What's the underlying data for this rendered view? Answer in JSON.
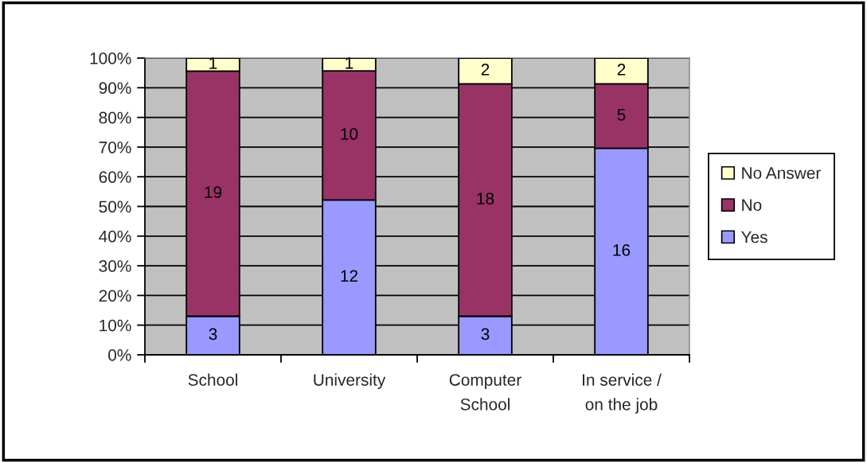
{
  "chart_data": {
    "type": "bar",
    "stacked": true,
    "categories": [
      "School",
      "University",
      "Computer\nSchool",
      "In service /\non the job"
    ],
    "series": [
      {
        "name": "Yes",
        "color": "#9999ff",
        "values": [
          13.0,
          52.2,
          13.0,
          69.6
        ]
      },
      {
        "name": "No",
        "color": "#993366",
        "values": [
          82.6,
          43.5,
          78.3,
          21.7
        ]
      },
      {
        "name": "No Answer",
        "color": "#ffffcc",
        "values": [
          4.4,
          4.3,
          8.7,
          8.7
        ]
      }
    ],
    "annotations": [
      "3",
      "19",
      "1",
      "12",
      "10",
      "1",
      "3",
      "18",
      "2",
      "16",
      "5",
      "2"
    ],
    "ylim": [
      0,
      100
    ],
    "yticks": [
      {
        "value": 0,
        "label": "0%"
      },
      {
        "value": 10,
        "label": "10%"
      },
      {
        "value": 20,
        "label": "20%"
      },
      {
        "value": 30,
        "label": "30%"
      },
      {
        "value": 40,
        "label": "40%"
      },
      {
        "value": 50,
        "label": "50%"
      },
      {
        "value": 60,
        "label": "60%"
      },
      {
        "value": 70,
        "label": "70%"
      },
      {
        "value": 80,
        "label": "80%"
      },
      {
        "value": 90,
        "label": "90%"
      },
      {
        "value": 100,
        "label": "100%"
      }
    ],
    "grid": "y",
    "legend": "right"
  }
}
